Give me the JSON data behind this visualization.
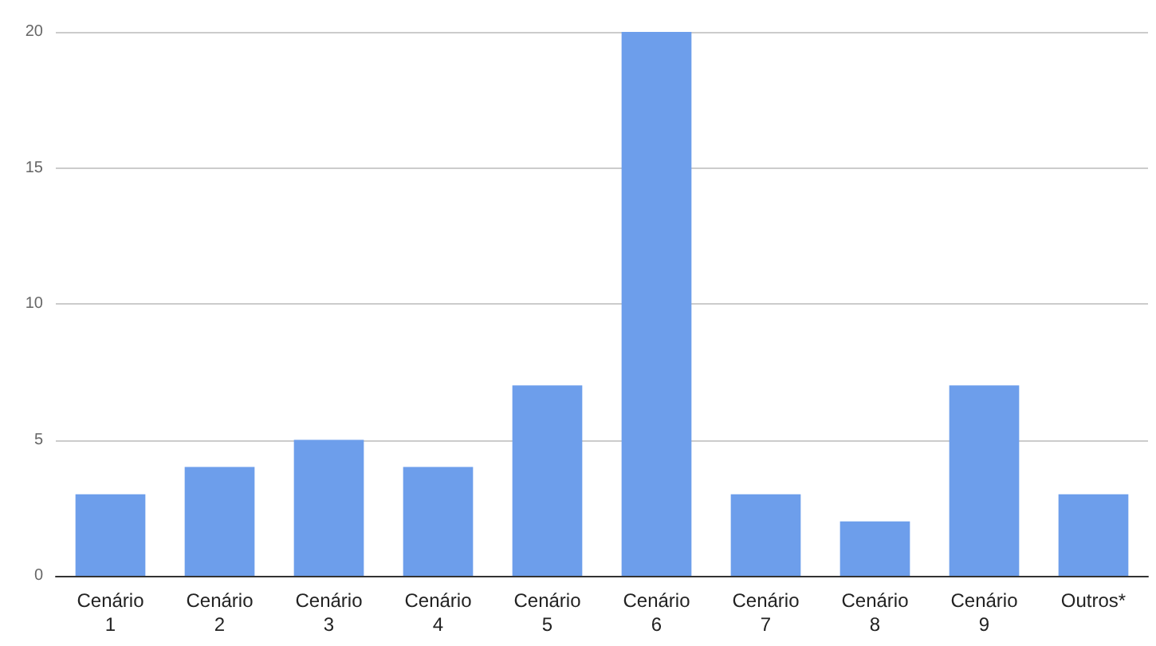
{
  "chart_data": {
    "type": "bar",
    "categories": [
      "Cenário 1",
      "Cenário 2",
      "Cenário 3",
      "Cenário 4",
      "Cenário 5",
      "Cenário 6",
      "Cenário 7",
      "Cenário 8",
      "Cenário 9",
      "Outros*"
    ],
    "values": [
      3,
      4,
      5,
      4,
      7,
      20,
      3,
      2,
      7,
      3
    ],
    "color": "#6d9eeb",
    "ylim": [
      0,
      20
    ],
    "yticks": [
      0,
      5,
      10,
      15,
      20
    ],
    "grid": "y"
  }
}
